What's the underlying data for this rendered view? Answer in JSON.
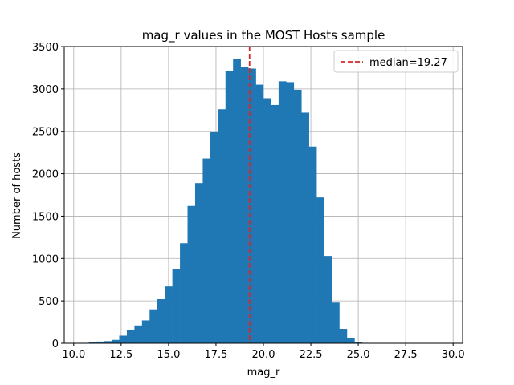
{
  "chart_data": {
    "type": "bar",
    "title": "mag_r values in the MOST Hosts sample",
    "xlabel": "mag_r",
    "ylabel": "Number of hosts",
    "xlim": [
      9.5,
      30.5
    ],
    "ylim": [
      0,
      3500
    ],
    "xticks": [
      10.0,
      12.5,
      15.0,
      17.5,
      20.0,
      22.5,
      25.0,
      27.5,
      30.0
    ],
    "xtick_labels": [
      "10.0",
      "12.5",
      "15.0",
      "17.5",
      "20.0",
      "22.5",
      "25.0",
      "27.5",
      "30.0"
    ],
    "yticks": [
      0,
      500,
      1000,
      1500,
      2000,
      2500,
      3000,
      3500
    ],
    "ytick_labels": [
      "0",
      "500",
      "1000",
      "1500",
      "2000",
      "2500",
      "3000",
      "3500"
    ],
    "grid": true,
    "bar_color": "#1f77b4",
    "bin_edges": [
      10.4,
      10.8,
      11.2,
      11.6,
      12.0,
      12.4,
      12.8,
      13.2,
      13.6,
      14.0,
      14.4,
      14.8,
      15.2,
      15.6,
      16.0,
      16.4,
      16.8,
      17.2,
      17.6,
      18.0,
      18.4,
      18.8,
      19.2,
      19.6,
      20.0,
      20.4,
      20.8,
      21.2,
      21.6,
      22.0,
      22.4,
      22.8,
      23.2,
      23.6,
      24.0,
      24.4,
      24.8,
      25.2,
      25.6,
      26.0,
      26.4,
      26.8,
      27.2,
      27.6,
      28.0,
      28.4,
      28.8,
      29.2,
      29.6,
      30.0
    ],
    "values": [
      5,
      10,
      20,
      25,
      40,
      90,
      160,
      210,
      270,
      400,
      520,
      670,
      870,
      1180,
      1620,
      1890,
      2180,
      2490,
      2760,
      3210,
      3350,
      3260,
      3240,
      3050,
      2890,
      2810,
      3090,
      3080,
      2990,
      2720,
      2320,
      1720,
      1030,
      480,
      170,
      60,
      10,
      5,
      2,
      1,
      1,
      1,
      1,
      1,
      1,
      1,
      1,
      1,
      1
    ],
    "median": {
      "value": 19.27,
      "label": "median=19.27",
      "color": "#d62728",
      "style": "dashed"
    },
    "legend_position": "top-right"
  }
}
